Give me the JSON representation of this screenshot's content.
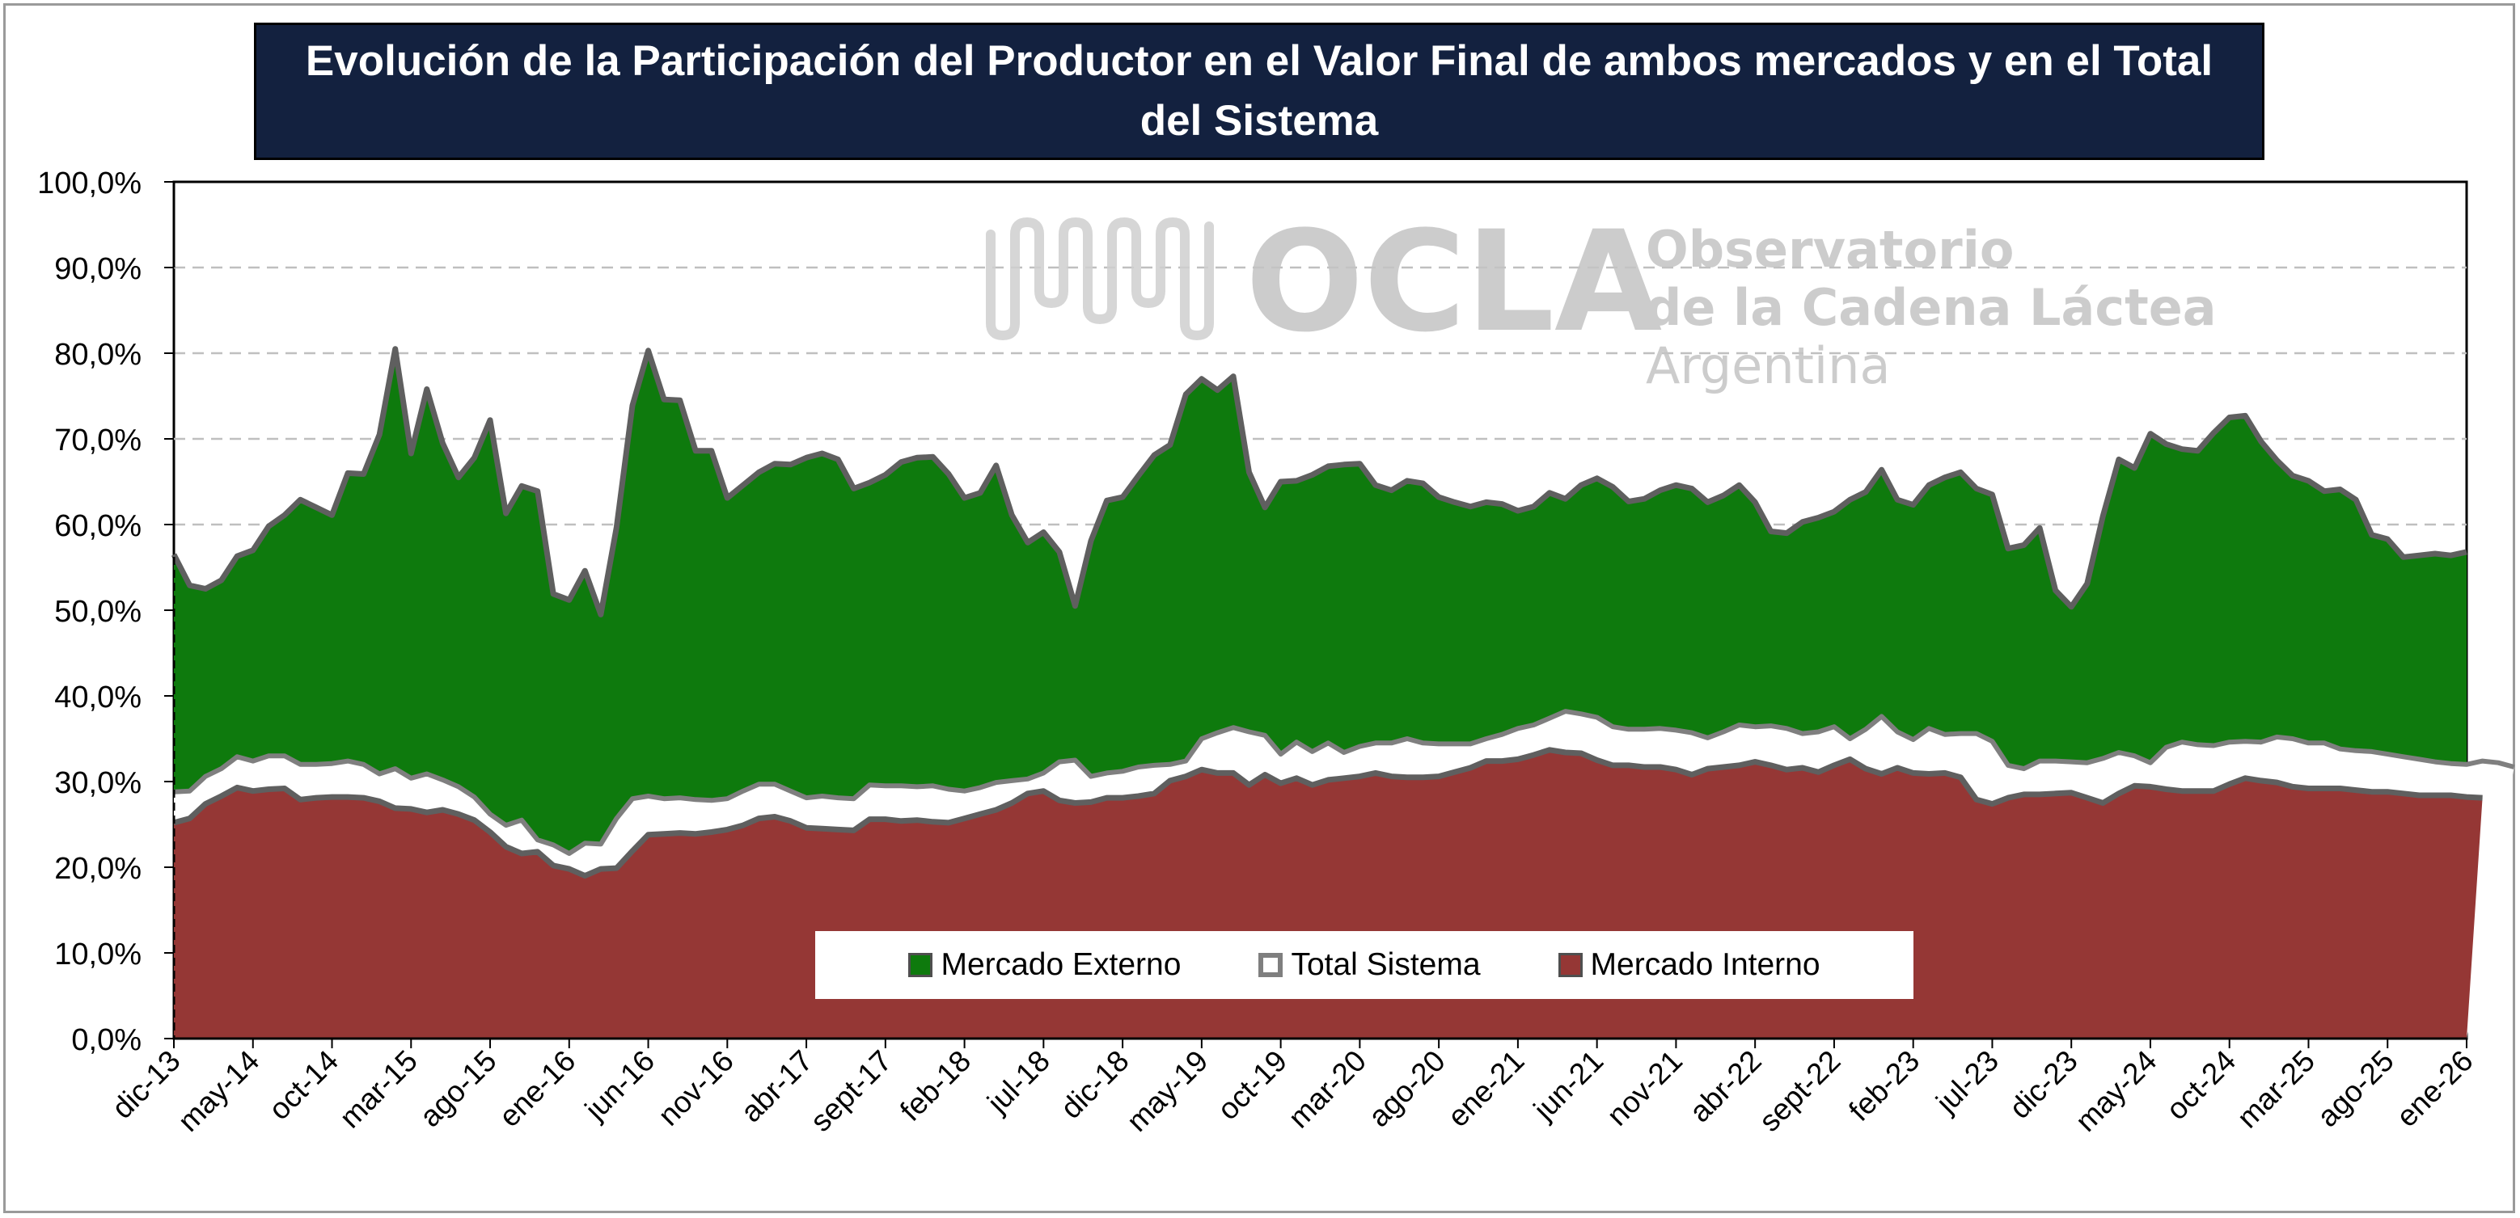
{
  "chart_data": {
    "type": "area",
    "title": "Evolución de la Participación del Productor en el Valor Final de ambos mercados y en el Total del Sistema",
    "title_lines": [
      "Evolución de la Participación del Productor en el Valor Final de ambos mercados y en el Total",
      "del Sistema"
    ],
    "ylim": [
      0,
      100
    ],
    "y_ticks": [
      "0,0%",
      "10,0%",
      "20,0%",
      "30,0%",
      "40,0%",
      "50,0%",
      "60,0%",
      "70,0%",
      "80,0%",
      "90,0%",
      "100,0%"
    ],
    "x_tick_labels": [
      "dic-13",
      "may-14",
      "oct-14",
      "mar-15",
      "ago-15",
      "ene-16",
      "jun-16",
      "nov-16",
      "abr-17",
      "sept-17",
      "feb-18",
      "jul-18",
      "dic-18",
      "may-19",
      "oct-19",
      "mar-20",
      "ago-20",
      "ene-21",
      "jun-21",
      "nov-21",
      "abr-22",
      "sept-22",
      "feb-23",
      "jul-23",
      "dic-23",
      "may-24",
      "oct-24",
      "mar-25",
      "ago-25",
      "ene-26"
    ],
    "period": {
      "start": "dic-13",
      "end": "ene-26",
      "frequency": "monthly"
    },
    "grid": "horizontal dashed",
    "legend_position": "bottom-center",
    "series": [
      {
        "name": "Mercado Externo",
        "color": "#0e7a0d",
        "values": [
          56.5,
          52.9,
          52.5,
          53.5,
          56.3,
          57.0,
          59.8,
          61.1,
          62.9,
          62.0,
          61.1,
          66.0,
          65.9,
          70.5,
          80.5,
          68.3,
          75.8,
          69.5,
          65.5,
          67.8,
          72.2,
          61.3,
          64.5,
          63.9,
          51.9,
          51.2,
          54.6,
          49.5,
          59.7,
          73.9,
          80.3,
          74.6,
          74.5,
          68.6,
          68.6,
          63.1,
          64.6,
          66.1,
          67.1,
          67.0,
          67.8,
          68.3,
          67.6,
          64.2,
          64.9,
          65.8,
          67.3,
          67.8,
          67.9,
          65.9,
          63.1,
          63.7,
          66.9,
          61.1,
          57.9,
          59.1,
          56.8,
          50.5,
          58.1,
          62.8,
          63.2,
          65.7,
          68.1,
          69.3,
          75.2,
          77.0,
          75.7,
          77.3,
          66.1,
          62.0,
          65.0,
          65.1,
          65.8,
          66.8,
          67.0,
          67.1,
          64.6,
          64.0,
          65.1,
          64.8,
          63.2,
          62.6,
          62.1,
          62.6,
          62.4,
          61.6,
          62.1,
          63.7,
          63.0,
          64.6,
          65.4,
          64.4,
          62.7,
          63.0,
          64.0,
          64.6,
          64.2,
          62.6,
          63.4,
          64.6,
          62.6,
          59.2,
          59.0,
          60.3,
          60.8,
          61.5,
          62.9,
          63.8,
          66.4,
          62.9,
          62.3,
          64.6,
          65.5,
          66.1,
          64.2,
          63.5,
          57.2,
          57.6,
          59.6,
          52.3,
          50.4,
          53.1,
          61.0,
          67.6,
          66.6,
          70.6,
          69.4,
          68.8,
          68.6,
          70.7,
          72.5,
          72.7,
          69.7,
          67.5,
          65.7,
          65.1,
          63.9,
          64.1,
          62.9,
          58.8,
          58.3,
          56.2,
          56.4,
          56.6,
          56.4,
          56.8
        ]
      },
      {
        "name": "Total Sistema",
        "color": "#ffffff",
        "border": "#7f7f7f",
        "values": [
          28.8,
          28.9,
          30.6,
          31.5,
          32.9,
          32.4,
          33.0,
          33.0,
          32.0,
          32.0,
          32.1,
          32.4,
          32.0,
          30.9,
          31.5,
          30.4,
          30.9,
          30.2,
          29.4,
          28.2,
          26.2,
          24.9,
          25.5,
          23.2,
          22.6,
          21.6,
          22.8,
          22.7,
          25.7,
          28.0,
          28.3,
          28.0,
          28.1,
          27.9,
          27.8,
          28.0,
          28.9,
          29.7,
          29.7,
          28.9,
          28.1,
          28.3,
          28.1,
          28.0,
          29.6,
          29.5,
          29.5,
          29.4,
          29.5,
          29.1,
          28.9,
          29.3,
          29.9,
          30.1,
          30.3,
          31.0,
          32.3,
          32.5,
          30.6,
          31.0,
          31.2,
          31.7,
          31.9,
          32.0,
          32.4,
          35.0,
          35.7,
          36.3,
          35.8,
          35.4,
          33.2,
          34.6,
          33.5,
          34.5,
          33.4,
          34.1,
          34.5,
          34.5,
          35.0,
          34.5,
          34.4,
          34.4,
          34.4,
          35.0,
          35.5,
          36.2,
          36.6,
          37.4,
          38.2,
          37.9,
          37.5,
          36.4,
          36.1,
          36.1,
          36.2,
          36.0,
          35.7,
          35.1,
          35.8,
          36.6,
          36.4,
          36.5,
          36.2,
          35.6,
          35.8,
          36.4,
          35.0,
          36.1,
          37.6,
          35.8,
          34.9,
          36.2,
          35.5,
          35.6,
          35.6,
          34.7,
          31.9,
          31.5,
          32.4,
          32.4,
          32.3,
          32.2,
          32.7,
          33.4,
          33.0,
          32.2,
          34.0,
          34.6,
          34.3,
          34.2,
          34.6,
          34.7,
          34.6,
          35.2,
          35.0,
          34.5,
          34.5,
          33.8,
          33.6,
          33.5,
          33.2,
          32.9,
          32.6,
          32.3,
          32.1,
          32.0,
          32.4,
          32.2,
          31.7
        ]
      },
      {
        "name": "Mercado Interno",
        "color": "#953735",
        "values": [
          25.2,
          25.7,
          27.4,
          28.3,
          29.3,
          28.9,
          29.1,
          29.2,
          27.9,
          28.1,
          28.2,
          28.2,
          28.1,
          27.7,
          26.9,
          26.8,
          26.4,
          26.7,
          26.2,
          25.5,
          24.1,
          22.4,
          21.6,
          21.8,
          20.2,
          19.8,
          19.0,
          19.8,
          19.9,
          21.9,
          23.8,
          23.9,
          24.0,
          23.9,
          24.1,
          24.4,
          24.9,
          25.7,
          25.9,
          25.4,
          24.6,
          24.5,
          24.4,
          24.3,
          25.6,
          25.6,
          25.4,
          25.5,
          25.3,
          25.2,
          25.7,
          26.2,
          26.7,
          27.5,
          28.6,
          28.9,
          27.8,
          27.5,
          27.6,
          28.1,
          28.1,
          28.3,
          28.6,
          30.1,
          30.6,
          31.4,
          31.0,
          31.0,
          29.6,
          30.8,
          29.8,
          30.4,
          29.6,
          30.2,
          30.4,
          30.6,
          31.0,
          30.6,
          30.5,
          30.5,
          30.6,
          31.1,
          31.6,
          32.4,
          32.4,
          32.6,
          33.1,
          33.7,
          33.4,
          33.3,
          32.5,
          31.9,
          31.9,
          31.7,
          31.7,
          31.4,
          30.8,
          31.5,
          31.7,
          31.9,
          32.3,
          31.9,
          31.4,
          31.6,
          31.1,
          31.9,
          32.6,
          31.5,
          30.9,
          31.6,
          31.0,
          30.9,
          31.0,
          30.5,
          27.9,
          27.4,
          28.1,
          28.5,
          28.5,
          28.6,
          28.7,
          28.1,
          27.5,
          28.6,
          29.5,
          29.4,
          29.1,
          28.9,
          28.9,
          28.9,
          29.7,
          30.4,
          30.1,
          29.9,
          29.4,
          29.2,
          29.2,
          29.2,
          29.0,
          28.8,
          28.8,
          28.6,
          28.4,
          28.4,
          28.4,
          28.2,
          28.1
        ]
      }
    ]
  },
  "legend": {
    "items": [
      {
        "label": "Mercado Externo",
        "color": "#0e7a0d",
        "border": "#4f4f4f"
      },
      {
        "label": "Total Sistema",
        "color": "#ffffff",
        "border": "#7f7f7f"
      },
      {
        "label": "Mercado Interno",
        "color": "#953735",
        "border": "#4f4f4f"
      }
    ]
  },
  "watermark": {
    "logo_text": "OCLA",
    "line1": "Observatorio",
    "line2": "de la Cadena Láctea",
    "line3": "Argentina"
  },
  "colors": {
    "title_bg": "#13213f",
    "grid": "#bfbfbf",
    "outline": "#5f5f5f"
  }
}
